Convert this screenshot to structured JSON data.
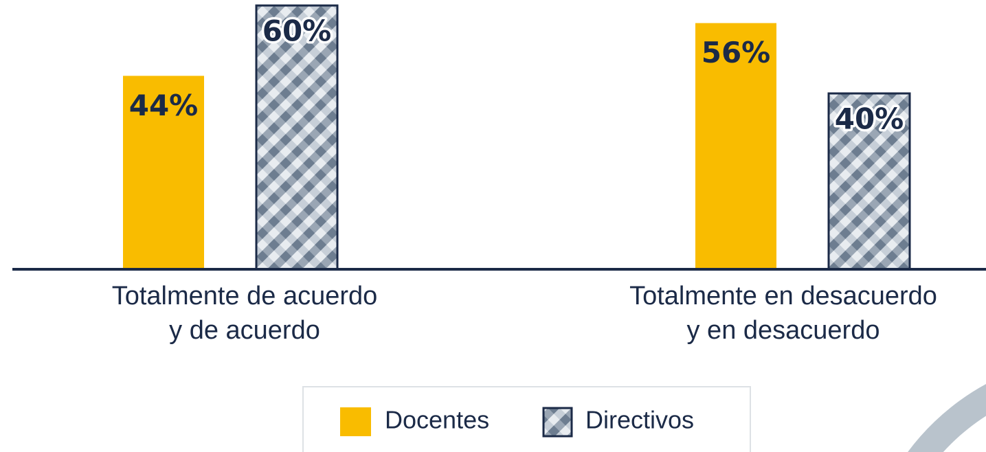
{
  "chart_data": {
    "type": "bar",
    "categories": [
      "Totalmente de acuerdo\ny de acuerdo",
      "Totalmente en desacuerdo\ny en desacuerdo"
    ],
    "series": [
      {
        "name": "Docentes",
        "color": "#f9bc00",
        "values": [
          44,
          56
        ],
        "value_labels": [
          "44%",
          "56%"
        ]
      },
      {
        "name": "Directivos",
        "color": "#1b2a47",
        "pattern": "checkered",
        "values": [
          60,
          40
        ],
        "value_labels": [
          "60%",
          "40%"
        ]
      }
    ],
    "legend": "bottom"
  }
}
